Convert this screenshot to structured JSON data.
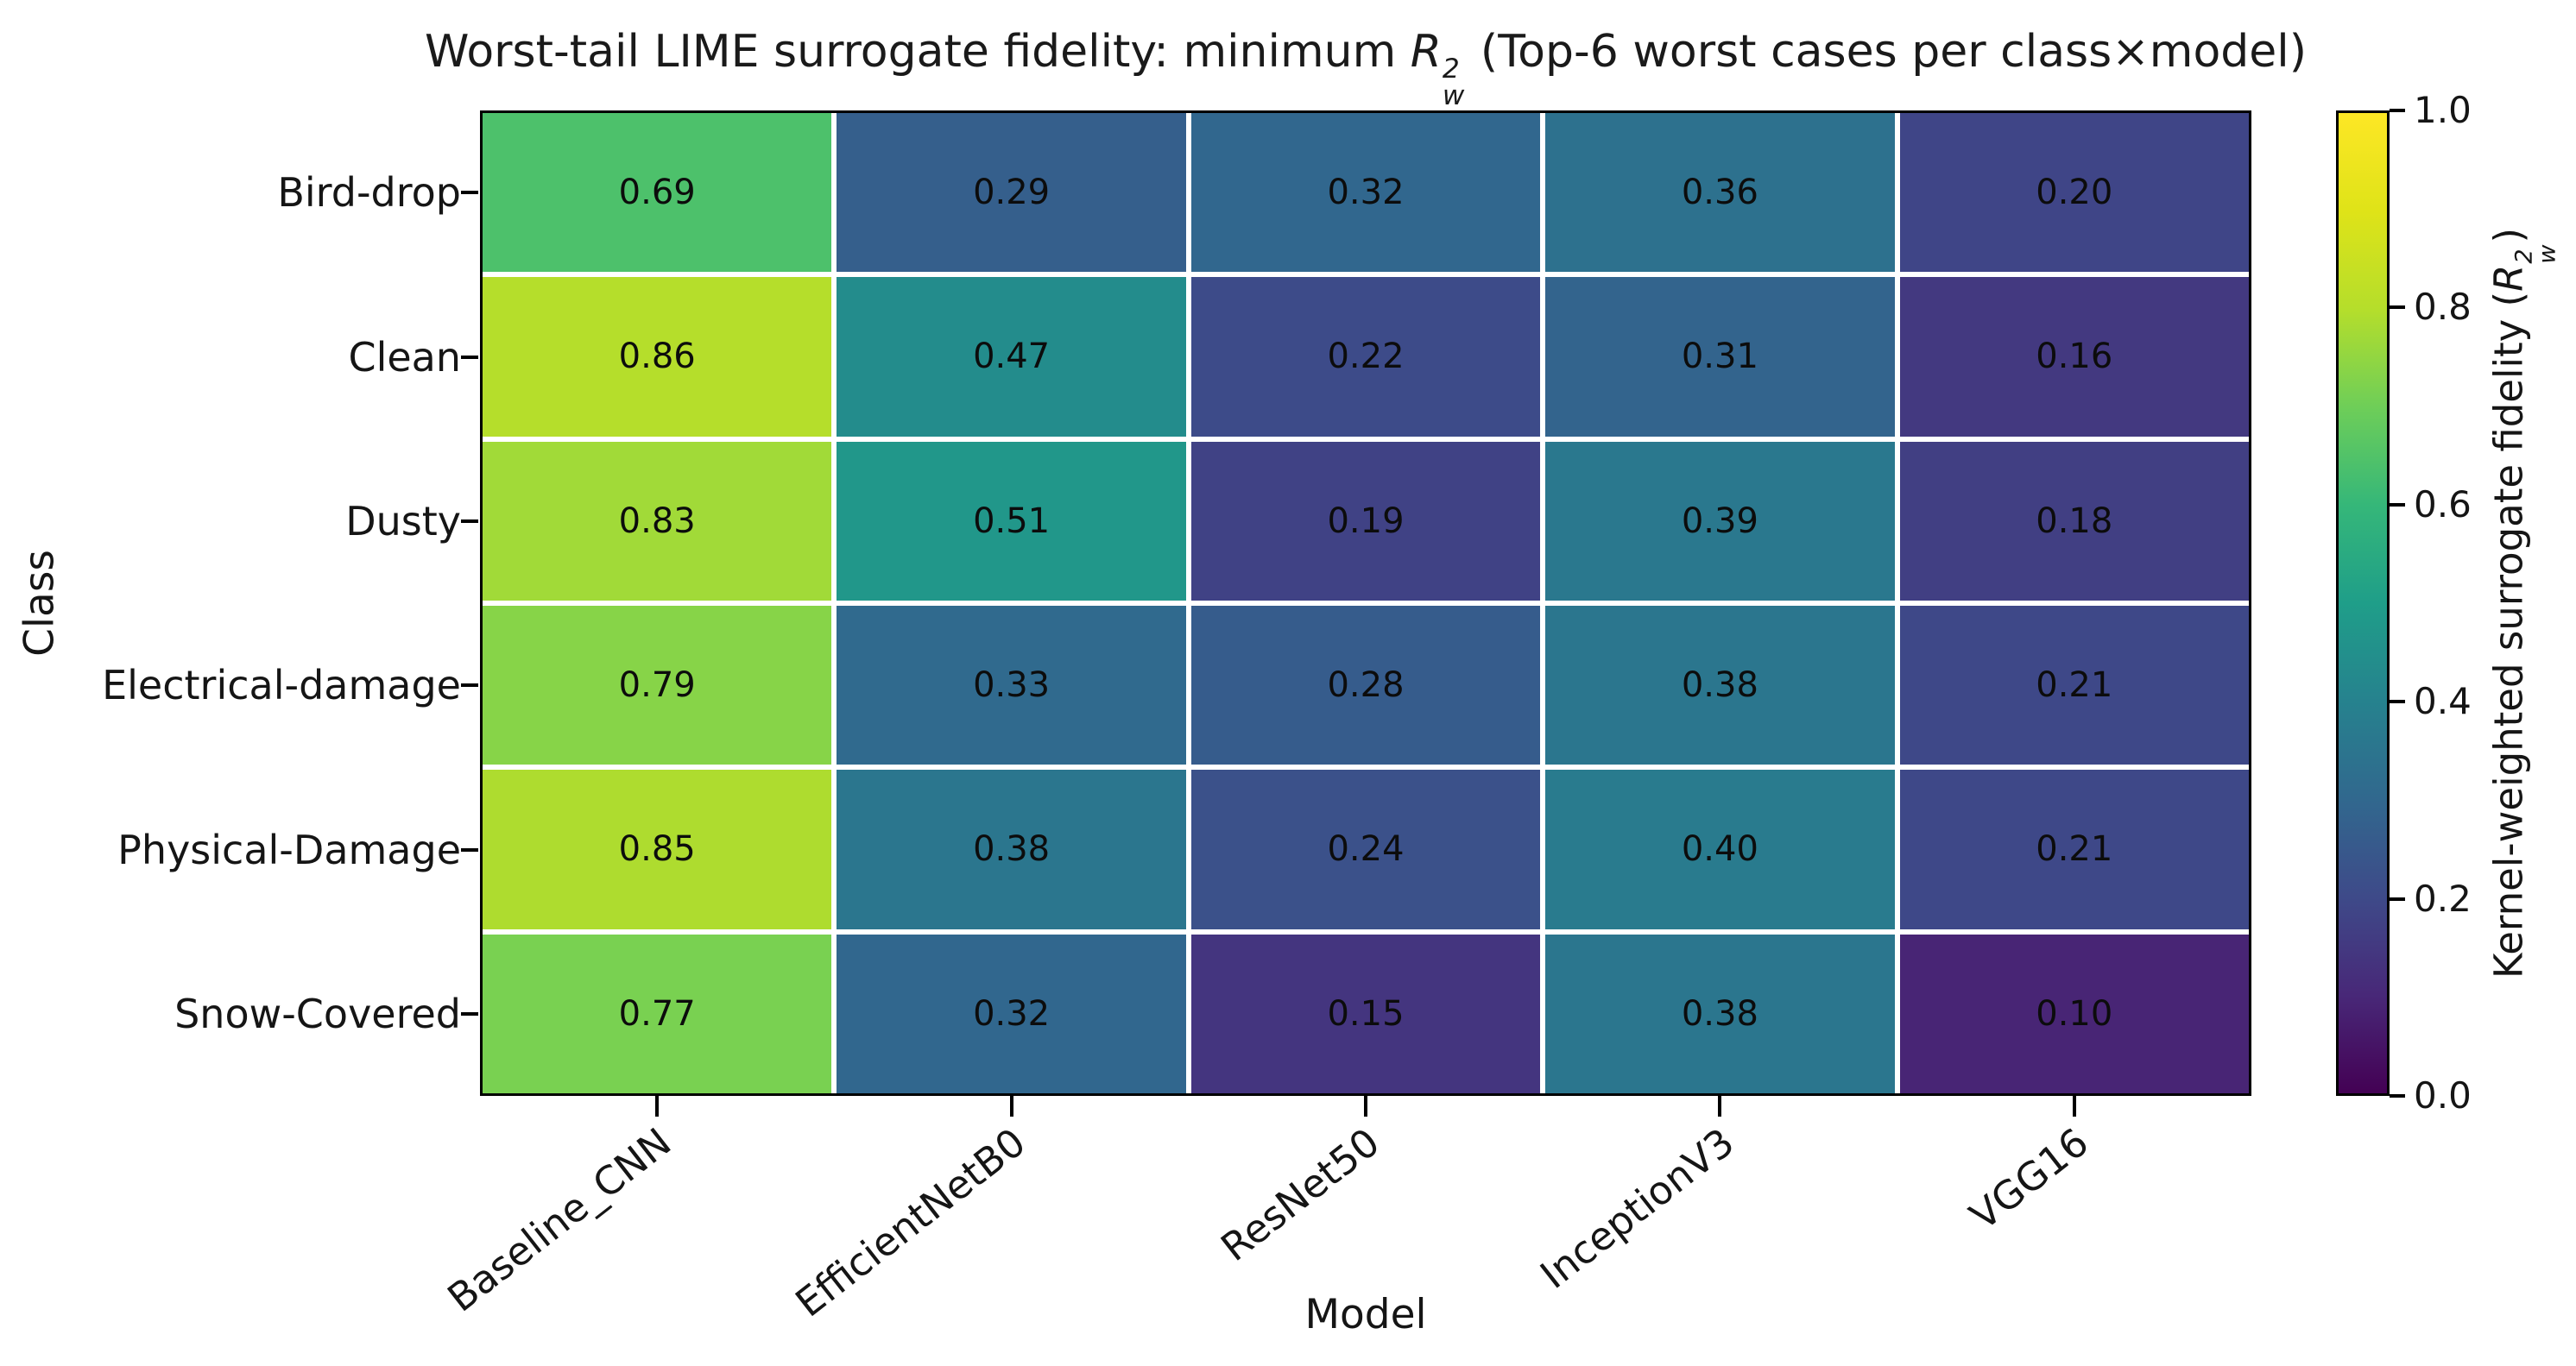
{
  "title": {
    "prefix": "Worst-tail LIME surrogate fidelity: minimum ",
    "math": {
      "base": "R",
      "sup": "2",
      "sub": "w"
    },
    "suffix": " (Top-6 worst cases per class×model)"
  },
  "chart_data": {
    "type": "heatmap",
    "xlabel": "Model",
    "ylabel": "Class",
    "categories_x": [
      "Baseline_CNN",
      "EfficientNetB0",
      "ResNet50",
      "InceptionV3",
      "VGG16"
    ],
    "categories_y": [
      "Bird-drop",
      "Clean",
      "Dusty",
      "Electrical-damage",
      "Physical-Damage",
      "Snow-Covered"
    ],
    "values": [
      [
        0.69,
        0.29,
        0.32,
        0.36,
        0.2
      ],
      [
        0.86,
        0.47,
        0.22,
        0.31,
        0.16
      ],
      [
        0.83,
        0.51,
        0.19,
        0.39,
        0.18
      ],
      [
        0.79,
        0.33,
        0.28,
        0.38,
        0.21
      ],
      [
        0.85,
        0.38,
        0.24,
        0.4,
        0.21
      ],
      [
        0.77,
        0.32,
        0.15,
        0.38,
        0.1
      ]
    ],
    "value_decimals": 2,
    "colormap": "viridis",
    "vmin": 0.0,
    "vmax": 1.0,
    "grid": "white-gaps",
    "colorbar": {
      "ticks": [
        1.0,
        0.8,
        0.6,
        0.4,
        0.2,
        0.0
      ],
      "tick_decimals": 1,
      "label_prefix": "Kernel-weighted surrogate fidelity (",
      "math": {
        "base": "R",
        "sup": "2",
        "sub": "w"
      },
      "label_suffix": ")"
    }
  },
  "colors": {
    "background": "#ffffff",
    "text": "#000000",
    "cell_text": "#0c0c0c",
    "axis": "#000000",
    "viridis_stops": [
      "#440154",
      "#482878",
      "#3e4a89",
      "#31688e",
      "#26828e",
      "#1f9e89",
      "#35b779",
      "#6ece58",
      "#b5de2b",
      "#dfe318",
      "#fde725"
    ]
  }
}
